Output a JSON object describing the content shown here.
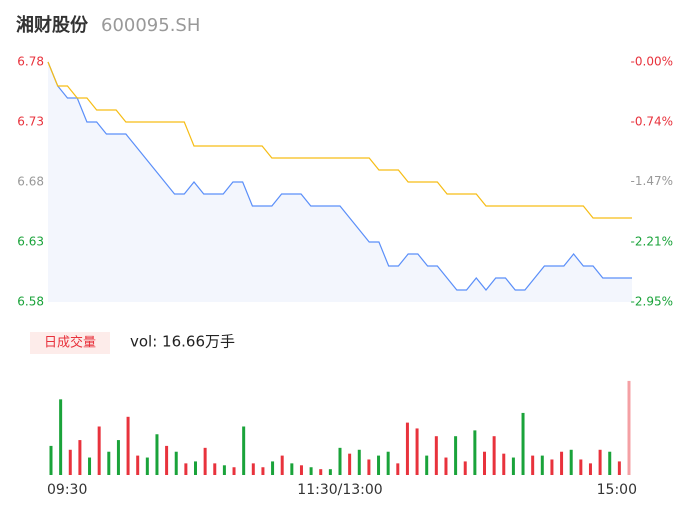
{
  "header": {
    "title": "湘财股份",
    "code": "600095.SH"
  },
  "chart_data": [
    {
      "type": "line",
      "categories": [
        "09:30",
        null,
        null,
        null,
        null,
        null,
        null,
        null,
        null,
        null,
        null,
        null,
        null,
        null,
        null,
        null,
        null,
        null,
        null,
        null,
        null,
        null,
        null,
        null,
        null,
        null,
        null,
        null,
        null,
        null,
        "11:30/13:00",
        null,
        null,
        null,
        null,
        null,
        null,
        null,
        null,
        null,
        null,
        null,
        null,
        null,
        null,
        null,
        null,
        null,
        null,
        null,
        null,
        null,
        null,
        null,
        null,
        null,
        null,
        null,
        null,
        null,
        "15:00"
      ],
      "series": [
        {
          "color": "#5b8ff9",
          "values": [
            6.78,
            6.76,
            6.75,
            6.75,
            6.73,
            6.73,
            6.72,
            6.72,
            6.72,
            6.71,
            6.7,
            6.69,
            6.68,
            6.67,
            6.67,
            6.68,
            6.67,
            6.67,
            6.67,
            6.68,
            6.68,
            6.66,
            6.66,
            6.66,
            6.67,
            6.67,
            6.67,
            6.66,
            6.66,
            6.66,
            6.66,
            6.65,
            6.64,
            6.63,
            6.63,
            6.61,
            6.61,
            6.62,
            6.62,
            6.61,
            6.61,
            6.6,
            6.59,
            6.59,
            6.6,
            6.59,
            6.6,
            6.6,
            6.59,
            6.59,
            6.6,
            6.61,
            6.61,
            6.61,
            6.62,
            6.61,
            6.61,
            6.6,
            6.6,
            6.6,
            6.6
          ]
        },
        {
          "color": "#f6bd16",
          "values": [
            6.78,
            6.76,
            6.76,
            6.75,
            6.75,
            6.74,
            6.74,
            6.74,
            6.73,
            6.73,
            6.73,
            6.73,
            6.73,
            6.73,
            6.73,
            6.71,
            6.71,
            6.71,
            6.71,
            6.71,
            6.71,
            6.71,
            6.71,
            6.7,
            6.7,
            6.7,
            6.7,
            6.7,
            6.7,
            6.7,
            6.7,
            6.7,
            6.7,
            6.7,
            6.69,
            6.69,
            6.69,
            6.68,
            6.68,
            6.68,
            6.68,
            6.67,
            6.67,
            6.67,
            6.67,
            6.66,
            6.66,
            6.66,
            6.66,
            6.66,
            6.66,
            6.66,
            6.66,
            6.66,
            6.66,
            6.66,
            6.65,
            6.65,
            6.65,
            6.65,
            6.65
          ]
        }
      ],
      "ylim": [
        6.58,
        6.78
      ],
      "yticks": [
        {
          "value": 6.58,
          "label": "6.58"
        },
        {
          "value": 6.63,
          "label": "6.63"
        },
        {
          "value": 6.68,
          "label": "6.68"
        },
        {
          "value": 6.73,
          "label": "6.73"
        },
        {
          "value": 6.78,
          "label": "6.78"
        }
      ],
      "y2lim": [
        -2.95,
        0
      ],
      "y2ticks": [
        {
          "value": -2.95,
          "label": "-2.95%"
        },
        {
          "value": -2.21,
          "label": "-2.21%"
        },
        {
          "value": -1.47,
          "label": "-1.47%"
        },
        {
          "value": -0.74,
          "label": "-0.74%"
        },
        {
          "value": 0,
          "label": "-0.00%"
        }
      ],
      "tick_colors": [
        "#1aa33a",
        "#1aa33a",
        "#999999",
        "#e8323c",
        "#e8323c"
      ],
      "area_color": "#f3f6fd"
    },
    {
      "type": "bar",
      "button": "日成交量",
      "volume_label": "vol: 16.66万手",
      "values": [
        30,
        78,
        26,
        36,
        18,
        50,
        24,
        36,
        60,
        20,
        18,
        42,
        30,
        24,
        12,
        14,
        28,
        12,
        10,
        8,
        50,
        12,
        8,
        14,
        20,
        12,
        10,
        8,
        6,
        6,
        28,
        22,
        26,
        16,
        20,
        24,
        12,
        54,
        48,
        20,
        40,
        18,
        40,
        14,
        46,
        24,
        40,
        22,
        18,
        64,
        20,
        20,
        16,
        24,
        26,
        16,
        12,
        26,
        24,
        14,
        97
      ],
      "colors": [
        "#1aa33a",
        "#1aa33a",
        "#e8323c",
        "#e8323c",
        "#1aa33a",
        "#e8323c",
        "#1aa33a",
        "#1aa33a",
        "#e8323c",
        "#e8323c",
        "#1aa33a",
        "#1aa33a",
        "#e8323c",
        "#1aa33a",
        "#e8323c",
        "#1aa33a",
        "#e8323c",
        "#e8323c",
        "#1aa33a",
        "#e8323c",
        "#1aa33a",
        "#e8323c",
        "#e8323c",
        "#1aa33a",
        "#e8323c",
        "#1aa33a",
        "#e8323c",
        "#1aa33a",
        "#e8323c",
        "#1aa33a",
        "#1aa33a",
        "#e8323c",
        "#1aa33a",
        "#e8323c",
        "#1aa33a",
        "#1aa33a",
        "#e8323c",
        "#e8323c",
        "#e8323c",
        "#1aa33a",
        "#e8323c",
        "#e8323c",
        "#1aa33a",
        "#e8323c",
        "#1aa33a",
        "#e8323c",
        "#e8323c",
        "#e8323c",
        "#1aa33a",
        "#1aa33a",
        "#e8323c",
        "#1aa33a",
        "#e8323c",
        "#e8323c",
        "#1aa33a",
        "#e8323c",
        "#e8323c",
        "#e8323c",
        "#1aa33a",
        "#e8323c",
        "#f4a0a4"
      ],
      "ylim": [
        0,
        100
      ]
    }
  ]
}
